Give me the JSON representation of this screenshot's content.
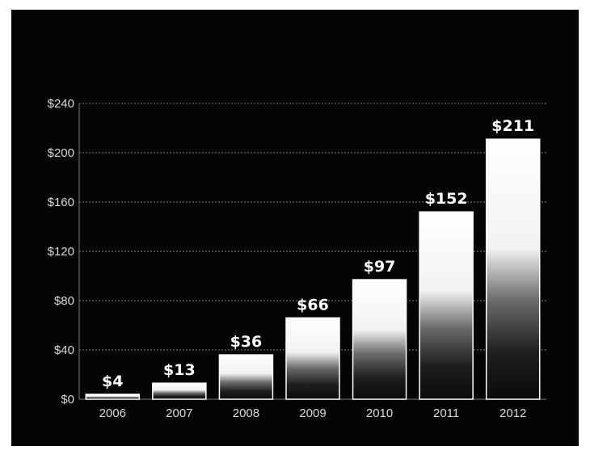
{
  "chart_data": {
    "type": "bar",
    "categories": [
      "2006",
      "2007",
      "2008",
      "2009",
      "2010",
      "2011",
      "2012"
    ],
    "values": [
      4,
      13,
      36,
      66,
      97,
      152,
      211
    ],
    "data_labels": [
      "$4",
      "$13",
      "$36",
      "$66",
      "$97",
      "$152",
      "$211"
    ],
    "title": "",
    "xlabel": "",
    "ylabel": "",
    "ylim": [
      0,
      240
    ],
    "y_ticks": [
      0,
      40,
      80,
      120,
      160,
      200,
      240
    ],
    "y_tick_labels": [
      "$0",
      "$40",
      "$80",
      "$120",
      "$160",
      "$200",
      "$240"
    ],
    "grid": "horizontal-dotted",
    "legend": "none",
    "colors": {
      "background": "#050505",
      "bar_top": "#ffffff",
      "bar_bottom": "#0a0a0a",
      "text": "#ffffff",
      "axis_text": "#d9d9d9",
      "grid": "#7a7a7a"
    }
  }
}
